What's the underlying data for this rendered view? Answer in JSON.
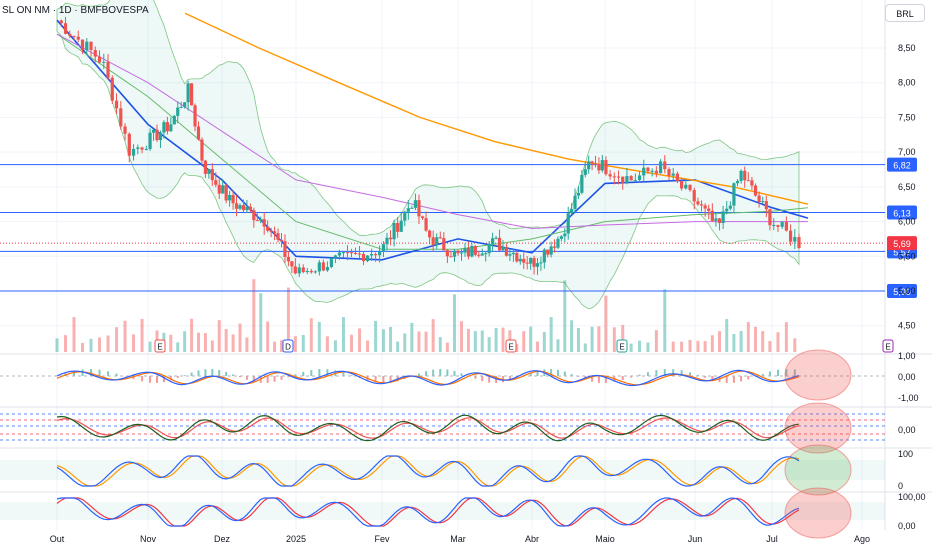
{
  "header": {
    "symbol_title": "SL ON NM · 1D · BMFBOVESPA",
    "currency": "BRL"
  },
  "x_axis": {
    "months": [
      "Out",
      "Nov",
      "Dez",
      "2025",
      "Fev",
      "Mar",
      "Abr",
      "Maio",
      "Jun",
      "Jul",
      "Ago"
    ]
  },
  "price_axis": {
    "ticks": [
      "8,50",
      "8,00",
      "7,50",
      "7,00",
      "6,50",
      "6,00",
      "5,50",
      "5,00",
      "4,50"
    ]
  },
  "indicator_axes": {
    "macd": [
      "1,00",
      "0,00",
      "-1,00"
    ],
    "pane2": [
      "0,00"
    ],
    "pane3": [
      "100",
      "0"
    ],
    "pane4": [
      "100,00",
      "0,00"
    ]
  },
  "colors": {
    "up": "#26a69a",
    "down": "#ef5350",
    "level_line": "#2962ff",
    "ma_fast": "#1e53e5",
    "ma_mid": "#66bb6a",
    "ma_slow": "#c56be0",
    "ma_long": "#ff9800",
    "bands": "#4caf50",
    "last_price": "#f23645"
  },
  "event_markers": [
    "E",
    "D",
    "E",
    "E",
    "E"
  ],
  "chart_data": {
    "type": "candlestick",
    "title": "SL ON NM · 1D · BMFBOVESPA",
    "currency": "BRL",
    "price_range": [
      4.3,
      9.0
    ],
    "x_labels": [
      "Out",
      "Nov",
      "Dez",
      "2025",
      "Fev",
      "Mar",
      "Abr",
      "Maio",
      "Jun",
      "Jul",
      "Ago"
    ],
    "horizontal_levels": [
      {
        "value": 6.82,
        "label": "6,82"
      },
      {
        "value": 6.13,
        "label": "6,13"
      },
      {
        "value": 5.57,
        "label": "5,57"
      },
      {
        "value": 5.0,
        "label": "5,00"
      }
    ],
    "last_price": {
      "value": 5.69,
      "label": "5,69"
    },
    "close_path": [
      {
        "month_pos": 0.0,
        "close": 8.9
      },
      {
        "month_pos": 0.5,
        "close": 8.3
      },
      {
        "month_pos": 0.8,
        "close": 7.0
      },
      {
        "month_pos": 1.3,
        "close": 7.4
      },
      {
        "month_pos": 1.55,
        "close": 7.9
      },
      {
        "month_pos": 1.75,
        "close": 6.8
      },
      {
        "month_pos": 2.1,
        "close": 6.3
      },
      {
        "month_pos": 2.6,
        "close": 6.0
      },
      {
        "month_pos": 3.0,
        "close": 5.25
      },
      {
        "month_pos": 3.5,
        "close": 5.45
      },
      {
        "month_pos": 4.0,
        "close": 5.6
      },
      {
        "month_pos": 4.4,
        "close": 6.3
      },
      {
        "month_pos": 4.6,
        "close": 5.8
      },
      {
        "month_pos": 5.0,
        "close": 5.5
      },
      {
        "month_pos": 5.5,
        "close": 5.7
      },
      {
        "month_pos": 6.0,
        "close": 5.4
      },
      {
        "month_pos": 6.4,
        "close": 5.8
      },
      {
        "month_pos": 6.8,
        "close": 6.9
      },
      {
        "month_pos": 7.3,
        "close": 6.6
      },
      {
        "month_pos": 7.6,
        "close": 6.8
      },
      {
        "month_pos": 8.0,
        "close": 6.3
      },
      {
        "month_pos": 8.3,
        "close": 5.9
      },
      {
        "month_pos": 8.6,
        "close": 6.7
      },
      {
        "month_pos": 9.0,
        "close": 6.0
      },
      {
        "month_pos": 9.3,
        "close": 5.69
      }
    ],
    "moving_averages": [
      {
        "name": "",
        "points": [
          [
            0,
            8.9
          ],
          [
            1,
            7.4
          ],
          [
            2,
            6.6
          ],
          [
            3,
            5.5
          ],
          [
            4,
            5.45
          ],
          [
            5,
            5.75
          ],
          [
            6,
            5.55
          ],
          [
            7,
            6.55
          ],
          [
            8,
            6.6
          ],
          [
            9,
            6.2
          ],
          [
            9.4,
            6.05
          ]
        ]
      },
      {
        "name": "",
        "points": [
          [
            0,
            8.7
          ],
          [
            1,
            7.8
          ],
          [
            2,
            6.9
          ],
          [
            3,
            6.0
          ],
          [
            4,
            5.6
          ],
          [
            5,
            5.6
          ],
          [
            6,
            5.75
          ],
          [
            7,
            6.0
          ],
          [
            8,
            6.1
          ],
          [
            9,
            6.15
          ],
          [
            9.4,
            6.2
          ]
        ]
      },
      {
        "name": "",
        "points": [
          [
            0,
            8.7
          ],
          [
            1,
            8.0
          ],
          [
            2,
            7.3
          ],
          [
            3,
            6.6
          ],
          [
            4,
            6.35
          ],
          [
            5,
            6.1
          ],
          [
            6,
            5.9
          ],
          [
            7,
            5.95
          ],
          [
            8,
            6.0
          ],
          [
            9,
            6.0
          ],
          [
            9.4,
            6.0
          ]
        ]
      },
      {
        "name": "",
        "points": [
          [
            1.5,
            9.0
          ],
          [
            2.5,
            8.5
          ],
          [
            3.5,
            8.0
          ],
          [
            4.5,
            7.5
          ],
          [
            5.5,
            7.15
          ],
          [
            6.5,
            6.9
          ],
          [
            7.5,
            6.7
          ],
          [
            8.5,
            6.5
          ],
          [
            9.4,
            6.25
          ]
        ]
      }
    ],
    "indicator_panes": [
      {
        "kind": "macd",
        "ticks": [
          "1,00",
          "0,00",
          "-1,00"
        ]
      },
      {
        "kind": "oscillator",
        "ticks": [
          "0,00"
        ]
      },
      {
        "kind": "oscillator",
        "ticks": [
          "100",
          "0"
        ]
      },
      {
        "kind": "oscillator",
        "ticks": [
          "100,00",
          "0,00"
        ]
      }
    ]
  }
}
